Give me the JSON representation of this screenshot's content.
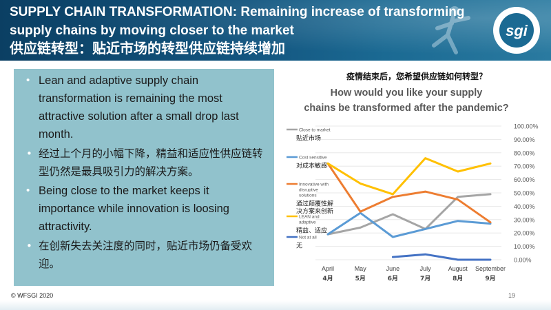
{
  "header": {
    "title_en": "SUPPLY CHAIN TRANSFORMATION: Remaining increase of transforming supply chains by moving closer to the market",
    "title_cn": "供应链转型：贴近市场的转型供应链持续增加",
    "logo_text": "sgi",
    "logo_ring_text": "WORLD FEDERATION OF THE SPORTING GOODS INDUSTRY"
  },
  "bullets": [
    {
      "text": "Lean and adaptive supply chain transformation is remaining the most attractive solution after a small drop last month.",
      "lang": "en"
    },
    {
      "text": "经过上个月的小幅下降，精益和适应性供应链转型仍然是最具吸引力的解决方案。",
      "lang": "cn"
    },
    {
      "text": "Being close to the market keeps it importance while innovation is loosing attractivity.",
      "lang": "en"
    },
    {
      "text": "在创新失去关注度的同时，贴近市场仍备受欢迎。",
      "lang": "cn"
    }
  ],
  "chart_data": {
    "type": "line",
    "title_cn": "疫情结束后，您希望供应链如何转型？",
    "title": "How would you like your supply chains be transformed after the pandemic?",
    "categories": [
      "April",
      "May",
      "June",
      "July",
      "August",
      "September"
    ],
    "categories_cn": [
      "4月",
      "5月",
      "6月",
      "7月",
      "8月",
      "9月"
    ],
    "ylim": [
      0,
      1
    ],
    "yticks": [
      "0.00%",
      "10.00%",
      "20.00%",
      "30.00%",
      "40.00%",
      "50.00%",
      "60.00%",
      "70.00%",
      "80.00%",
      "90.00%",
      "100.00%"
    ],
    "legend_position": "left",
    "series": [
      {
        "name": "Close to market",
        "name_cn": "贴近市场",
        "color": "#a5a5a5",
        "values": [
          0.19,
          0.24,
          0.34,
          0.23,
          0.47,
          0.49
        ]
      },
      {
        "name": "Cost sensitive",
        "name_cn": "对成本敏感",
        "color": "#5b9bd5",
        "values": [
          0.19,
          0.35,
          0.17,
          0.23,
          0.29,
          0.27
        ]
      },
      {
        "name": "Innovative with disruptive solutions",
        "name_cn": "通过颠覆性解决方案来创新",
        "color": "#ed7d31",
        "values": [
          0.72,
          0.36,
          0.47,
          0.51,
          0.45,
          0.28
        ]
      },
      {
        "name": "LEAN and adaptive",
        "name_cn": "精益、适应",
        "color": "#ffc000",
        "values": [
          0.72,
          0.57,
          0.49,
          0.76,
          0.66,
          0.72
        ]
      },
      {
        "name": "Not at all",
        "name_cn": "无",
        "color": "#4472c4",
        "values": [
          null,
          null,
          0.02,
          0.04,
          0.0,
          0.0
        ]
      }
    ]
  },
  "footer": {
    "copyright": "© WFSGI 2020",
    "page": "19"
  }
}
